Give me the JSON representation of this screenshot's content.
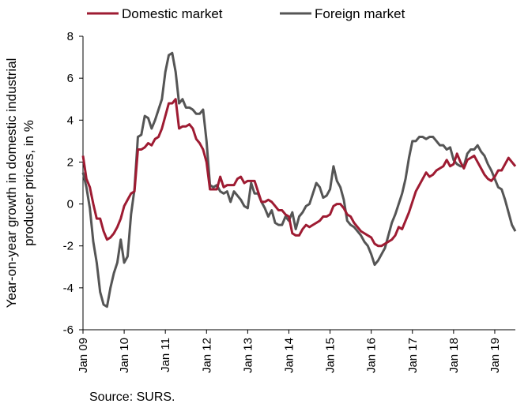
{
  "chart_data": {
    "type": "line",
    "title": "",
    "ylabel_lines": [
      "Year-on-year growth in domestic industrial",
      "producer prices, in %"
    ],
    "xlabel": "",
    "ylim": [
      -6,
      8
    ],
    "yticks": [
      -6,
      -4,
      -2,
      0,
      2,
      4,
      6,
      8
    ],
    "x_start": "Jan 09",
    "x_end": "Jul 19",
    "xticks": [
      "Jan 09",
      "Jan 10",
      "Jan 11",
      "Jan 12",
      "Jan 13",
      "Jan 14",
      "Jan 15",
      "Jan 16",
      "Jan 17",
      "Jan 18",
      "Jan 19"
    ],
    "grid": false,
    "legend_position": "top",
    "source": "Source: SURS.",
    "series": [
      {
        "name": "Domestic market",
        "color": "#9e1b32",
        "values": [
          2.3,
          1.2,
          0.8,
          0.0,
          -0.7,
          -0.7,
          -1.3,
          -1.7,
          -1.6,
          -1.4,
          -1.1,
          -0.7,
          -0.1,
          0.2,
          0.5,
          0.6,
          2.6,
          2.6,
          2.7,
          2.9,
          2.8,
          3.1,
          3.2,
          3.6,
          4.2,
          4.8,
          4.8,
          5.0,
          3.6,
          3.7,
          3.7,
          3.8,
          3.6,
          3.1,
          2.9,
          2.6,
          2.0,
          0.7,
          0.7,
          0.7,
          1.3,
          0.8,
          0.9,
          0.9,
          0.9,
          1.2,
          1.3,
          1.0,
          1.1,
          1.1,
          1.1,
          0.6,
          0.1,
          0.1,
          0.2,
          0.1,
          -0.1,
          -0.3,
          -0.3,
          -0.5,
          -0.6,
          -1.4,
          -1.5,
          -1.5,
          -1.2,
          -1.0,
          -1.1,
          -1.0,
          -0.9,
          -0.8,
          -0.6,
          -0.6,
          -0.5,
          -0.1,
          0.0,
          0.0,
          -0.2,
          -0.5,
          -0.6,
          -0.9,
          -1.1,
          -1.3,
          -1.4,
          -1.5,
          -1.6,
          -1.9,
          -2.0,
          -2.0,
          -1.9,
          -1.8,
          -1.7,
          -1.5,
          -1.1,
          -1.2,
          -0.8,
          -0.4,
          0.1,
          0.6,
          0.9,
          1.2,
          1.5,
          1.3,
          1.4,
          1.6,
          1.7,
          1.8,
          2.1,
          1.8,
          1.9,
          2.4,
          2.0,
          1.7,
          2.1,
          2.2,
          2.3,
          2.0,
          1.7,
          1.4,
          1.2,
          1.1,
          1.3,
          1.6,
          1.6,
          1.9,
          2.2,
          2.0,
          1.8
        ]
      },
      {
        "name": "Foreign market",
        "color": "#555555",
        "values": [
          1.5,
          0.8,
          -0.2,
          -1.8,
          -2.8,
          -4.2,
          -4.8,
          -4.9,
          -4.0,
          -3.3,
          -2.8,
          -1.7,
          -2.8,
          -2.5,
          -0.5,
          0.7,
          3.2,
          3.3,
          4.2,
          4.1,
          3.6,
          4.0,
          4.5,
          5.0,
          6.3,
          7.1,
          7.2,
          6.3,
          4.8,
          5.0,
          4.6,
          4.6,
          4.5,
          4.3,
          4.3,
          4.5,
          3.0,
          0.9,
          0.8,
          0.9,
          0.6,
          0.5,
          0.6,
          0.1,
          0.6,
          0.4,
          0.2,
          -0.1,
          -0.2,
          1.0,
          0.5,
          0.5,
          0.1,
          -0.2,
          -0.6,
          -0.3,
          -0.9,
          -1.0,
          -1.0,
          -0.6,
          -0.8,
          -0.4,
          -1.2,
          -0.6,
          -0.4,
          -0.1,
          0.0,
          0.5,
          1.0,
          0.8,
          0.3,
          0.4,
          0.7,
          1.8,
          1.1,
          0.8,
          0.2,
          -0.8,
          -1.0,
          -1.1,
          -1.3,
          -1.5,
          -1.8,
          -2.0,
          -2.4,
          -2.9,
          -2.7,
          -2.4,
          -2.1,
          -1.5,
          -0.9,
          -0.5,
          0.0,
          0.5,
          1.2,
          2.2,
          3.0,
          3.0,
          3.2,
          3.2,
          3.1,
          3.2,
          3.2,
          3.0,
          2.8,
          2.8,
          2.6,
          2.7,
          2.1,
          1.9,
          1.8,
          1.8,
          2.4,
          2.6,
          2.6,
          2.8,
          2.5,
          2.3,
          1.9,
          1.6,
          1.2,
          0.8,
          0.7,
          0.2,
          -0.4,
          -1.0,
          -1.3
        ]
      }
    ]
  }
}
